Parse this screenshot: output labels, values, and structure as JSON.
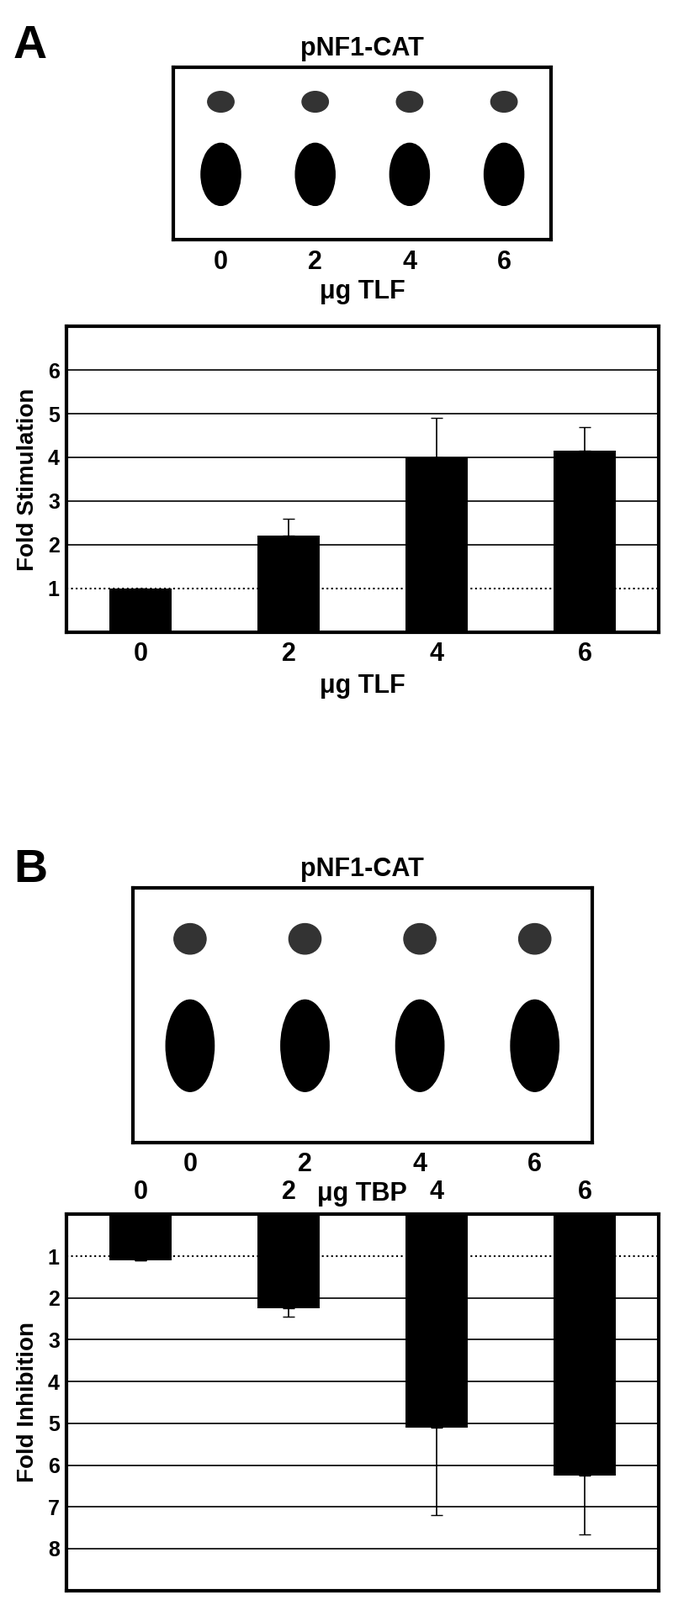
{
  "chart_data": [
    {
      "type": "tlc",
      "annotations": [
        "A"
      ],
      "title": "pNF1-CAT",
      "categories": [
        "0",
        "2",
        "4",
        "6"
      ],
      "xlabel": "μg TLF"
    },
    {
      "type": "bar",
      "categories": [
        "0",
        "2",
        "4",
        "6"
      ],
      "xlabel": "μg TLF",
      "ylabel": "Fold Stimulation",
      "values": [
        1,
        2.2,
        4.0,
        4.15
      ],
      "errors": [
        0,
        0.4,
        0.9,
        0.55
      ],
      "color": "#000000",
      "ylim": [
        0,
        7
      ],
      "yticks": [
        1,
        2,
        3,
        4,
        5,
        6
      ],
      "grid": true
    },
    {
      "type": "tlc",
      "annotations": [
        "B"
      ],
      "title": "pNF1-CAT",
      "categories": [
        "0",
        "2",
        "4",
        "6"
      ],
      "xlabel": "μg TBP"
    },
    {
      "type": "bar",
      "categories": [
        "0",
        "2",
        "4",
        "6"
      ],
      "ylabel": "Fold Inhibition",
      "values": [
        1.1,
        2.25,
        5.1,
        6.25
      ],
      "errors": [
        0,
        0.2,
        2.1,
        1.4
      ],
      "color": "#000000",
      "ylim": [
        9,
        0
      ],
      "yticks": [
        1,
        2,
        3,
        4,
        5,
        6,
        7,
        8
      ],
      "grid": true
    }
  ]
}
